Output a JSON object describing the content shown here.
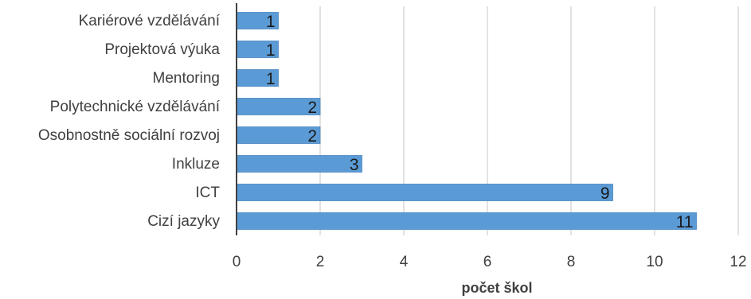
{
  "chart_data": {
    "type": "bar",
    "orientation": "horizontal",
    "categories": [
      "Kariérové vzdělávání",
      "Projektová výuka",
      "Mentoring",
      "Polytechnické vzdělávání",
      "Osobnostně sociální rozvoj",
      "Inkluze",
      "ICT",
      "Cizí jazyky"
    ],
    "values": [
      1,
      1,
      1,
      2,
      2,
      3,
      9,
      11
    ],
    "title": "",
    "xlabel": "počet škol",
    "ylabel": "",
    "xlim": [
      0,
      12
    ],
    "xticks": [
      0,
      2,
      4,
      6,
      8,
      10,
      12
    ],
    "grid": "vertical",
    "legend": "none",
    "data_labels": true,
    "colors": {
      "bar": "#5b9bd5",
      "bar_edge": "#4a86c0",
      "grid": "#d9d9d9",
      "axis": "#404040",
      "text": "#404040"
    }
  }
}
